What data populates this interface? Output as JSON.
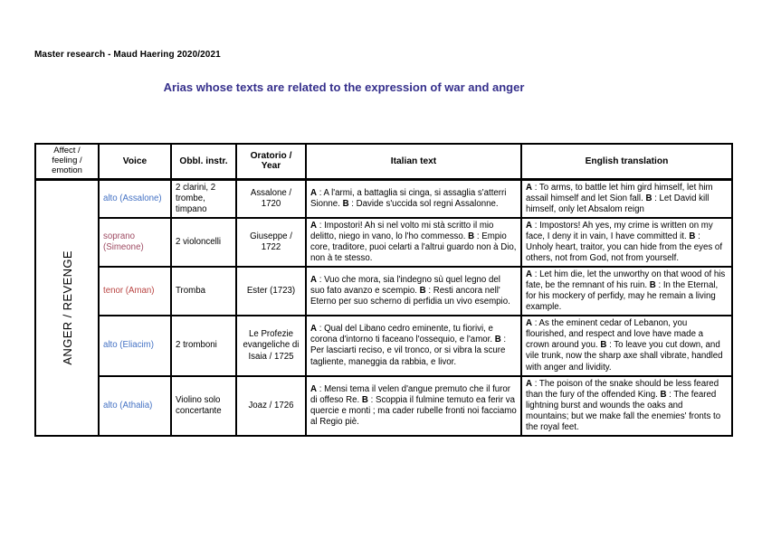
{
  "page": {
    "header": "Master research - Maud Haering 2020/2021",
    "title": "Arias whose texts are related to the expression of war and anger"
  },
  "colors": {
    "title": "#36308C",
    "voice_blue": "#4472C4",
    "voice_maroon": "#9E4A62",
    "voice_red": "#B94442"
  },
  "table": {
    "headers": [
      "Affect / feeling / emotion",
      "Voice",
      "Obbl. instr.",
      "Oratorio / Year",
      "Italian text",
      "English translation"
    ],
    "affect_label": "ANGER / REVENGE",
    "rows": [
      {
        "voice": "alto (Assalone)",
        "voice_color": "#4472C4",
        "instr": "2 clarini, 2 trombe, timpano",
        "oratorio": "Assalone / 1720",
        "italian": [
          {
            "b": true,
            "t": "A"
          },
          {
            "b": false,
            "t": " : A l'armi, a battaglia si cinga, si assaglia s'atterri Sionne. "
          },
          {
            "b": true,
            "t": "B"
          },
          {
            "b": false,
            "t": " : Davide s'uccida sol regni Assalonne."
          }
        ],
        "english": [
          {
            "b": true,
            "t": "A"
          },
          {
            "b": false,
            "t": " : To arms, to battle let him gird himself, let him assail himself and let Sion fall. "
          },
          {
            "b": true,
            "t": "B"
          },
          {
            "b": false,
            "t": " : Let David kill himself, only let Absalom reign"
          }
        ]
      },
      {
        "voice": "soprano (Simeone)",
        "voice_color": "#9E4A62",
        "instr": "2 violoncelli",
        "oratorio": "Giuseppe / 1722",
        "italian": [
          {
            "b": true,
            "t": "A"
          },
          {
            "b": false,
            "t": " : Impostori! Ah si nel volto mi stà scritto il mio delitto, niego in vano, lo l'ho commesso. "
          },
          {
            "b": true,
            "t": "B"
          },
          {
            "b": false,
            "t": " : Empio core, traditore, puoi celarti a l'altrui guardo non à Dio, non à te stesso."
          }
        ],
        "english": [
          {
            "b": true,
            "t": "A"
          },
          {
            "b": false,
            "t": " : Impostors! Ah yes, my crime is written on my face, I deny it in vain, I have committed it. "
          },
          {
            "b": true,
            "t": "B"
          },
          {
            "b": false,
            "t": " : Unholy heart, traitor, you can hide from the eyes of others, not from God, not from yourself."
          }
        ]
      },
      {
        "voice": "tenor (Aman)",
        "voice_color": "#B94442",
        "instr": "Tromba",
        "oratorio": "Ester (1723)",
        "italian": [
          {
            "b": true,
            "t": "A"
          },
          {
            "b": false,
            "t": " : Vuo che mora, sia l'indegno sù quel legno del suo fato avanzo e scempio. "
          },
          {
            "b": true,
            "t": "B"
          },
          {
            "b": false,
            "t": " : Resti ancora nell' Eterno per suo scherno di perfidia un vivo esempio."
          }
        ],
        "english": [
          {
            "b": true,
            "t": "A"
          },
          {
            "b": false,
            "t": " : Let him die, let the unworthy on that wood of his fate, be the remnant of his ruin. "
          },
          {
            "b": true,
            "t": "B"
          },
          {
            "b": false,
            "t": " : In the Eternal, for his mockery of perfidy, may he remain a living example."
          }
        ]
      },
      {
        "voice": "alto (Eliacim)",
        "voice_color": "#4472C4",
        "instr": "2 tromboni",
        "oratorio": "Le Profezie evangeliche di Isaia / 1725",
        "italian": [
          {
            "b": true,
            "t": "A"
          },
          {
            "b": false,
            "t": " : Qual del Libano cedro eminente, tu fiorivi, e corona d'intorno ti faceano l'ossequio, e l'amor. "
          },
          {
            "b": true,
            "t": "B"
          },
          {
            "b": false,
            "t": " : Per lasciarti reciso, e vil tronco, or si vibra la scure tagliente, maneggia da rabbia, e livor."
          }
        ],
        "english": [
          {
            "b": true,
            "t": "A"
          },
          {
            "b": false,
            "t": " : As the eminent cedar of Lebanon, you flourished, and respect and love have made a crown around you. "
          },
          {
            "b": true,
            "t": "B"
          },
          {
            "b": false,
            "t": " : To leave you cut down, and vile trunk, now the sharp axe shall vibrate, handled with anger and lividity."
          }
        ]
      },
      {
        "voice": "alto (Athalia)",
        "voice_color": "#4472C4",
        "instr": "Violino solo concertante",
        "oratorio": "Joaz / 1726",
        "italian": [
          {
            "b": true,
            "t": "A"
          },
          {
            "b": false,
            "t": " : Mensi tema il velen d'angue premuto che il furor di offeso Re. "
          },
          {
            "b": true,
            "t": "B"
          },
          {
            "b": false,
            "t": " : Scoppia il fulmine temuto ea ferir va quercie e monti ; ma cader rubelle fronti noi facciamo al Regio piè."
          }
        ],
        "english": [
          {
            "b": true,
            "t": "A"
          },
          {
            "b": false,
            "t": " : The poison of the snake should be less feared than the fury of the offended King. "
          },
          {
            "b": true,
            "t": "B"
          },
          {
            "b": false,
            "t": " : The feared lightning burst and wounds the oaks and mountains; but we make fall the enemies' fronts to the royal feet."
          }
        ]
      }
    ]
  }
}
